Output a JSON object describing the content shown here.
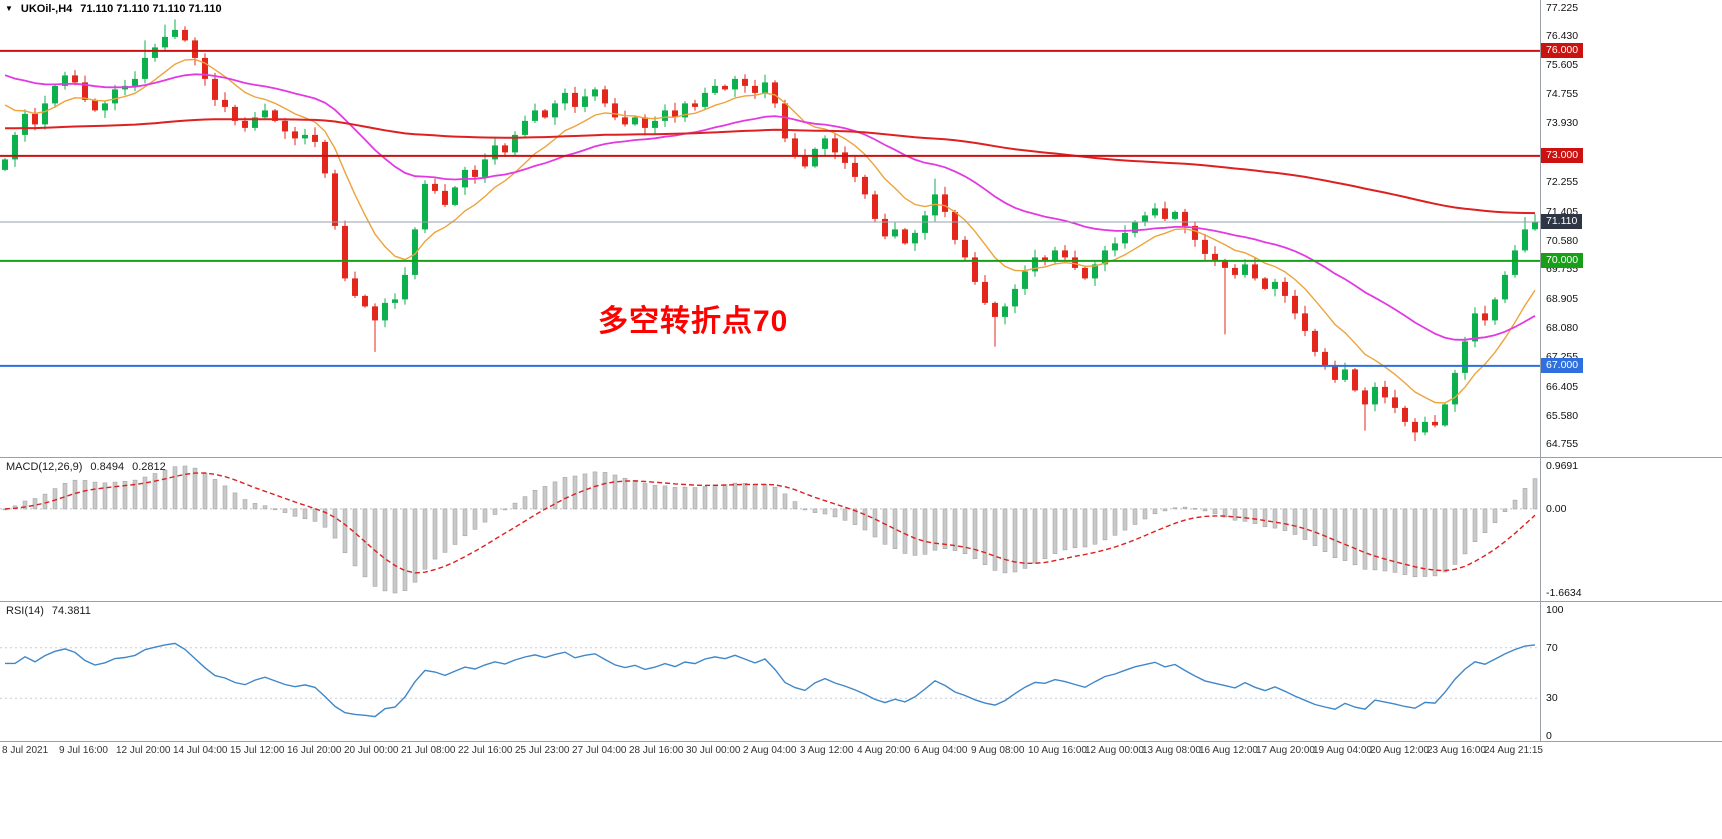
{
  "header": {
    "dropdown_icon": "▼",
    "symbol": "UKOil-,H4",
    "ohlc": "71.110 71.110 71.110 71.110"
  },
  "annotation": {
    "text": "多空转折点70",
    "color": "#ff0000"
  },
  "chart_data": {
    "type": "candlestick",
    "symbol": "UKOil-",
    "timeframe": "H4",
    "last_price": 71.11,
    "price_axis": {
      "min": 64.755,
      "max": 77.225,
      "labels": [
        "77.225",
        "76.430",
        "75.605",
        "74.755",
        "73.930",
        "73.105",
        "72.255",
        "71.405",
        "70.580",
        "69.755",
        "68.905",
        "68.080",
        "67.255",
        "66.405",
        "65.580",
        "64.755"
      ],
      "badges": [
        {
          "value": "76.000",
          "price": 76.0,
          "bg": "#cc1111"
        },
        {
          "value": "73.000",
          "price": 73.0,
          "bg": "#cc1111"
        },
        {
          "value": "71.110",
          "price": 71.11,
          "bg": "#2e3545"
        },
        {
          "value": "70.000",
          "price": 70.0,
          "bg": "#17a017"
        },
        {
          "value": "67.000",
          "price": 67.0,
          "bg": "#2f6fde"
        }
      ]
    },
    "levels": [
      {
        "price": 76.0,
        "color": "#cc1111",
        "width": 2
      },
      {
        "price": 73.0,
        "color": "#cc1111",
        "width": 2
      },
      {
        "price": 71.11,
        "color": "#94a0ad",
        "width": 1
      },
      {
        "price": 70.0,
        "color": "#17a017",
        "width": 2
      },
      {
        "price": 67.0,
        "color": "#2f6fde",
        "width": 2
      }
    ],
    "candles": {
      "up_color": "#0cb04c",
      "down_color": "#e3271d",
      "first_open": 72.6,
      "closes": [
        72.9,
        73.6,
        74.2,
        73.9,
        74.5,
        75.0,
        75.3,
        75.1,
        74.6,
        74.3,
        74.5,
        74.9,
        75.0,
        75.2,
        75.8,
        76.1,
        76.4,
        76.6,
        76.3,
        75.8,
        75.2,
        74.6,
        74.4,
        74.0,
        73.8,
        74.1,
        74.3,
        74.0,
        73.7,
        73.5,
        73.6,
        73.4,
        72.5,
        71.0,
        69.5,
        69.0,
        68.7,
        68.3,
        68.8,
        68.9,
        69.6,
        70.9,
        72.2,
        72.0,
        71.6,
        72.1,
        72.6,
        72.4,
        72.9,
        73.3,
        73.1,
        73.6,
        74.0,
        74.3,
        74.1,
        74.5,
        74.8,
        74.4,
        74.7,
        74.9,
        74.5,
        74.1,
        73.9,
        74.1,
        73.8,
        74.0,
        74.3,
        74.1,
        74.5,
        74.4,
        74.8,
        75.0,
        74.9,
        75.2,
        75.0,
        74.8,
        75.1,
        74.5,
        73.5,
        73.0,
        72.7,
        73.2,
        73.5,
        73.1,
        72.8,
        72.4,
        71.9,
        71.2,
        70.7,
        70.9,
        70.5,
        70.8,
        71.3,
        71.9,
        71.4,
        70.6,
        70.1,
        69.4,
        68.8,
        68.4,
        68.7,
        69.2,
        69.7,
        70.1,
        70.0,
        70.3,
        70.1,
        69.8,
        69.5,
        69.9,
        70.3,
        70.5,
        70.8,
        71.1,
        71.3,
        71.5,
        71.2,
        71.4,
        71.0,
        70.6,
        70.2,
        70.0,
        69.8,
        69.6,
        69.9,
        69.5,
        69.2,
        69.4,
        69.0,
        68.5,
        68.0,
        67.4,
        67.0,
        66.6,
        66.9,
        66.3,
        65.9,
        66.4,
        66.1,
        65.8,
        65.4,
        65.1,
        65.4,
        65.3,
        65.9,
        66.8,
        67.7,
        68.5,
        68.3,
        68.9,
        69.6,
        70.3,
        70.9,
        71.11
      ],
      "wick_highs": {
        "14": 76.3,
        "16": 76.75,
        "17": 76.9,
        "18": 76.7,
        "93": 72.35,
        "152": 71.25,
        "153": 71.33
      },
      "wick_lows": {
        "37": 67.4,
        "99": 67.55,
        "122": 67.9,
        "136": 65.15,
        "141": 64.85
      }
    },
    "moving_averages": [
      {
        "name": "fast-ma",
        "period": 10,
        "seed": 74.8,
        "color": "#eda33c",
        "width": 1.4
      },
      {
        "name": "medium-ma",
        "period": 34,
        "seed": 75.45,
        "color": "#e23ae2",
        "width": 1.8
      },
      {
        "name": "slow-ma",
        "period": 200,
        "seed": 73.8,
        "color": "#dd2020",
        "width": 2
      }
    ],
    "macd": {
      "label": "MACD(12,26,9)",
      "main_value": "0.8494",
      "signal_value": "0.2812",
      "fast": 12,
      "slow": 26,
      "signal": 9,
      "axis_labels": {
        "top": "0.9691",
        "zero": "0.00",
        "bottom": "-1.6634"
      },
      "histogram_color": "#c9c9c9",
      "histogram_border": "#9b9b9b",
      "signal_color": "#dd2020"
    },
    "rsi": {
      "label": "RSI(14)",
      "value": "74.3811",
      "period": 14,
      "levels": [
        70,
        30
      ],
      "axis_labels": [
        "100",
        "70",
        "30",
        "0"
      ],
      "line_color": "#3f87c9",
      "level_color": "#c5ccd6"
    },
    "time_axis": {
      "labels": [
        "8 Jul 2021",
        "9 Jul 16:00",
        "12 Jul 20:00",
        "14 Jul 04:00",
        "15 Jul 12:00",
        "16 Jul 20:00",
        "20 Jul 00:00",
        "21 Jul 08:00",
        "22 Jul 16:00",
        "25 Jul 23:00",
        "27 Jul 04:00",
        "28 Jul 16:00",
        "30 Jul 00:00",
        "2 Aug 04:00",
        "3 Aug 12:00",
        "4 Aug 20:00",
        "6 Aug 04:00",
        "9 Aug 08:00",
        "10 Aug 16:00",
        "12 Aug 00:00",
        "13 Aug 08:00",
        "16 Aug 12:00",
        "17 Aug 20:00",
        "19 Aug 04:00",
        "20 Aug 12:00",
        "23 Aug 16:00",
        "24 Aug 21:15"
      ]
    }
  }
}
